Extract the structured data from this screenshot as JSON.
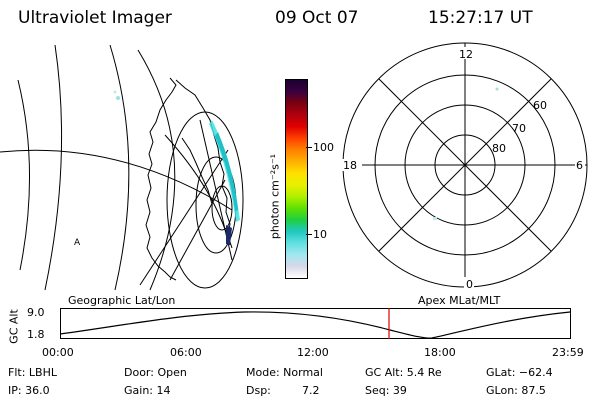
{
  "header": {
    "instrument": "Ultraviolet Imager",
    "date": "09 Oct 07",
    "time": "15:27:17 UT"
  },
  "geo_panel": {
    "label": "Geographic Lat/Lon",
    "marker": "A"
  },
  "colorbar": {
    "unit_label": "photon cm⁻²s⁻¹",
    "ticks": [
      "100",
      "10"
    ],
    "colors": [
      "#1a0030",
      "#3a0040",
      "#7a0010",
      "#b00010",
      "#e00000",
      "#ff4000",
      "#ff8000",
      "#ffb000",
      "#ffe000",
      "#e8f000",
      "#b0f000",
      "#60e000",
      "#20d040",
      "#20c8c0",
      "#60e0e0",
      "#a0e8f0",
      "#d8d8e8",
      "#ffffff"
    ]
  },
  "polar_panel": {
    "label": "Apex MLat/MLT",
    "mlt_labels": {
      "top": "12",
      "left": "18",
      "right": "6",
      "bottom": "0"
    },
    "lat_labels": [
      "60",
      "70",
      "80"
    ]
  },
  "alt_plot": {
    "ylabel": "GC Alt",
    "ymax": "9.0",
    "ymin": "1.8",
    "xticks": [
      "00:00",
      "06:00",
      "12:00",
      "18:00",
      "23:59"
    ],
    "current_time_fraction": 0.645
  },
  "info": {
    "filter": "Flt: LBHL",
    "door": "Door: Open",
    "mode": "Mode: Normal",
    "gc_alt": "GC Alt: 5.4 Re",
    "glat": "GLat: −62.4",
    "ip": "IP: 36.0",
    "gain": "Gain: 14",
    "dsp_label": "Dsp:",
    "dsp_value": "7.2",
    "seq": "Seq: 39",
    "glon": "GLon:  87.5"
  }
}
